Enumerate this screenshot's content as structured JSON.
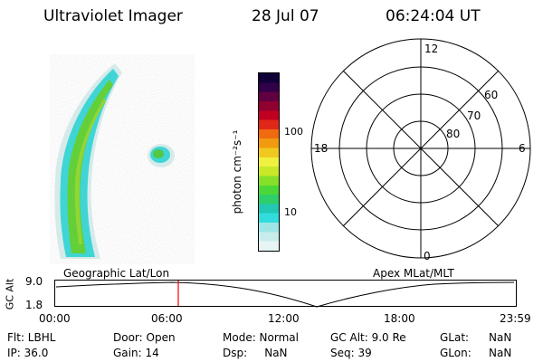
{
  "header": {
    "title": "Ultraviolet Imager",
    "date": "28 Jul 07",
    "time": "06:24:04 UT"
  },
  "colorbar": {
    "unit_label": "photon cm⁻²s⁻¹",
    "tick_high": "100",
    "tick_low": "10",
    "colors": [
      "#e8f4f4",
      "#c8ecec",
      "#9ee6e6",
      "#33dcdc",
      "#22c8b4",
      "#2ecf6a",
      "#4ad838",
      "#86e02a",
      "#c8e828",
      "#f0f040",
      "#f0c820",
      "#f09a10",
      "#f06a10",
      "#e02818",
      "#c00020",
      "#900030",
      "#600040",
      "#300048",
      "#100038"
    ]
  },
  "polar": {
    "mlt_top": "12",
    "mlt_left": "18",
    "mlt_right": "6",
    "mlt_bottom": "0",
    "lat_60": "60",
    "lat_70": "70",
    "lat_80": "80"
  },
  "altitude_panel": {
    "ylabel": "GC Alt",
    "ytick_high": "9.0",
    "ytick_low": "1.8",
    "left_title": "Geographic Lat/Lon",
    "right_title": "Apex  MLat/MLT",
    "xticks": [
      "00:00",
      "06:00",
      "12:00",
      "18:00",
      "23:59"
    ],
    "marker_time_hours": 6.4,
    "marker_color": "#ff0000"
  },
  "info": {
    "filter": "Flt: LBHL",
    "ip": "IP: 36.0",
    "door": "Door: Open",
    "gain": "Gain: 14",
    "mode": "Mode: Normal",
    "dsp": "Dsp:     NaN",
    "gc_alt": "GC Alt: 9.0 Re",
    "seq": "Seq: 39",
    "glat_label": "GLat:",
    "glat_value": "NaN",
    "glon_label": "GLon:",
    "glon_value": "NaN"
  }
}
